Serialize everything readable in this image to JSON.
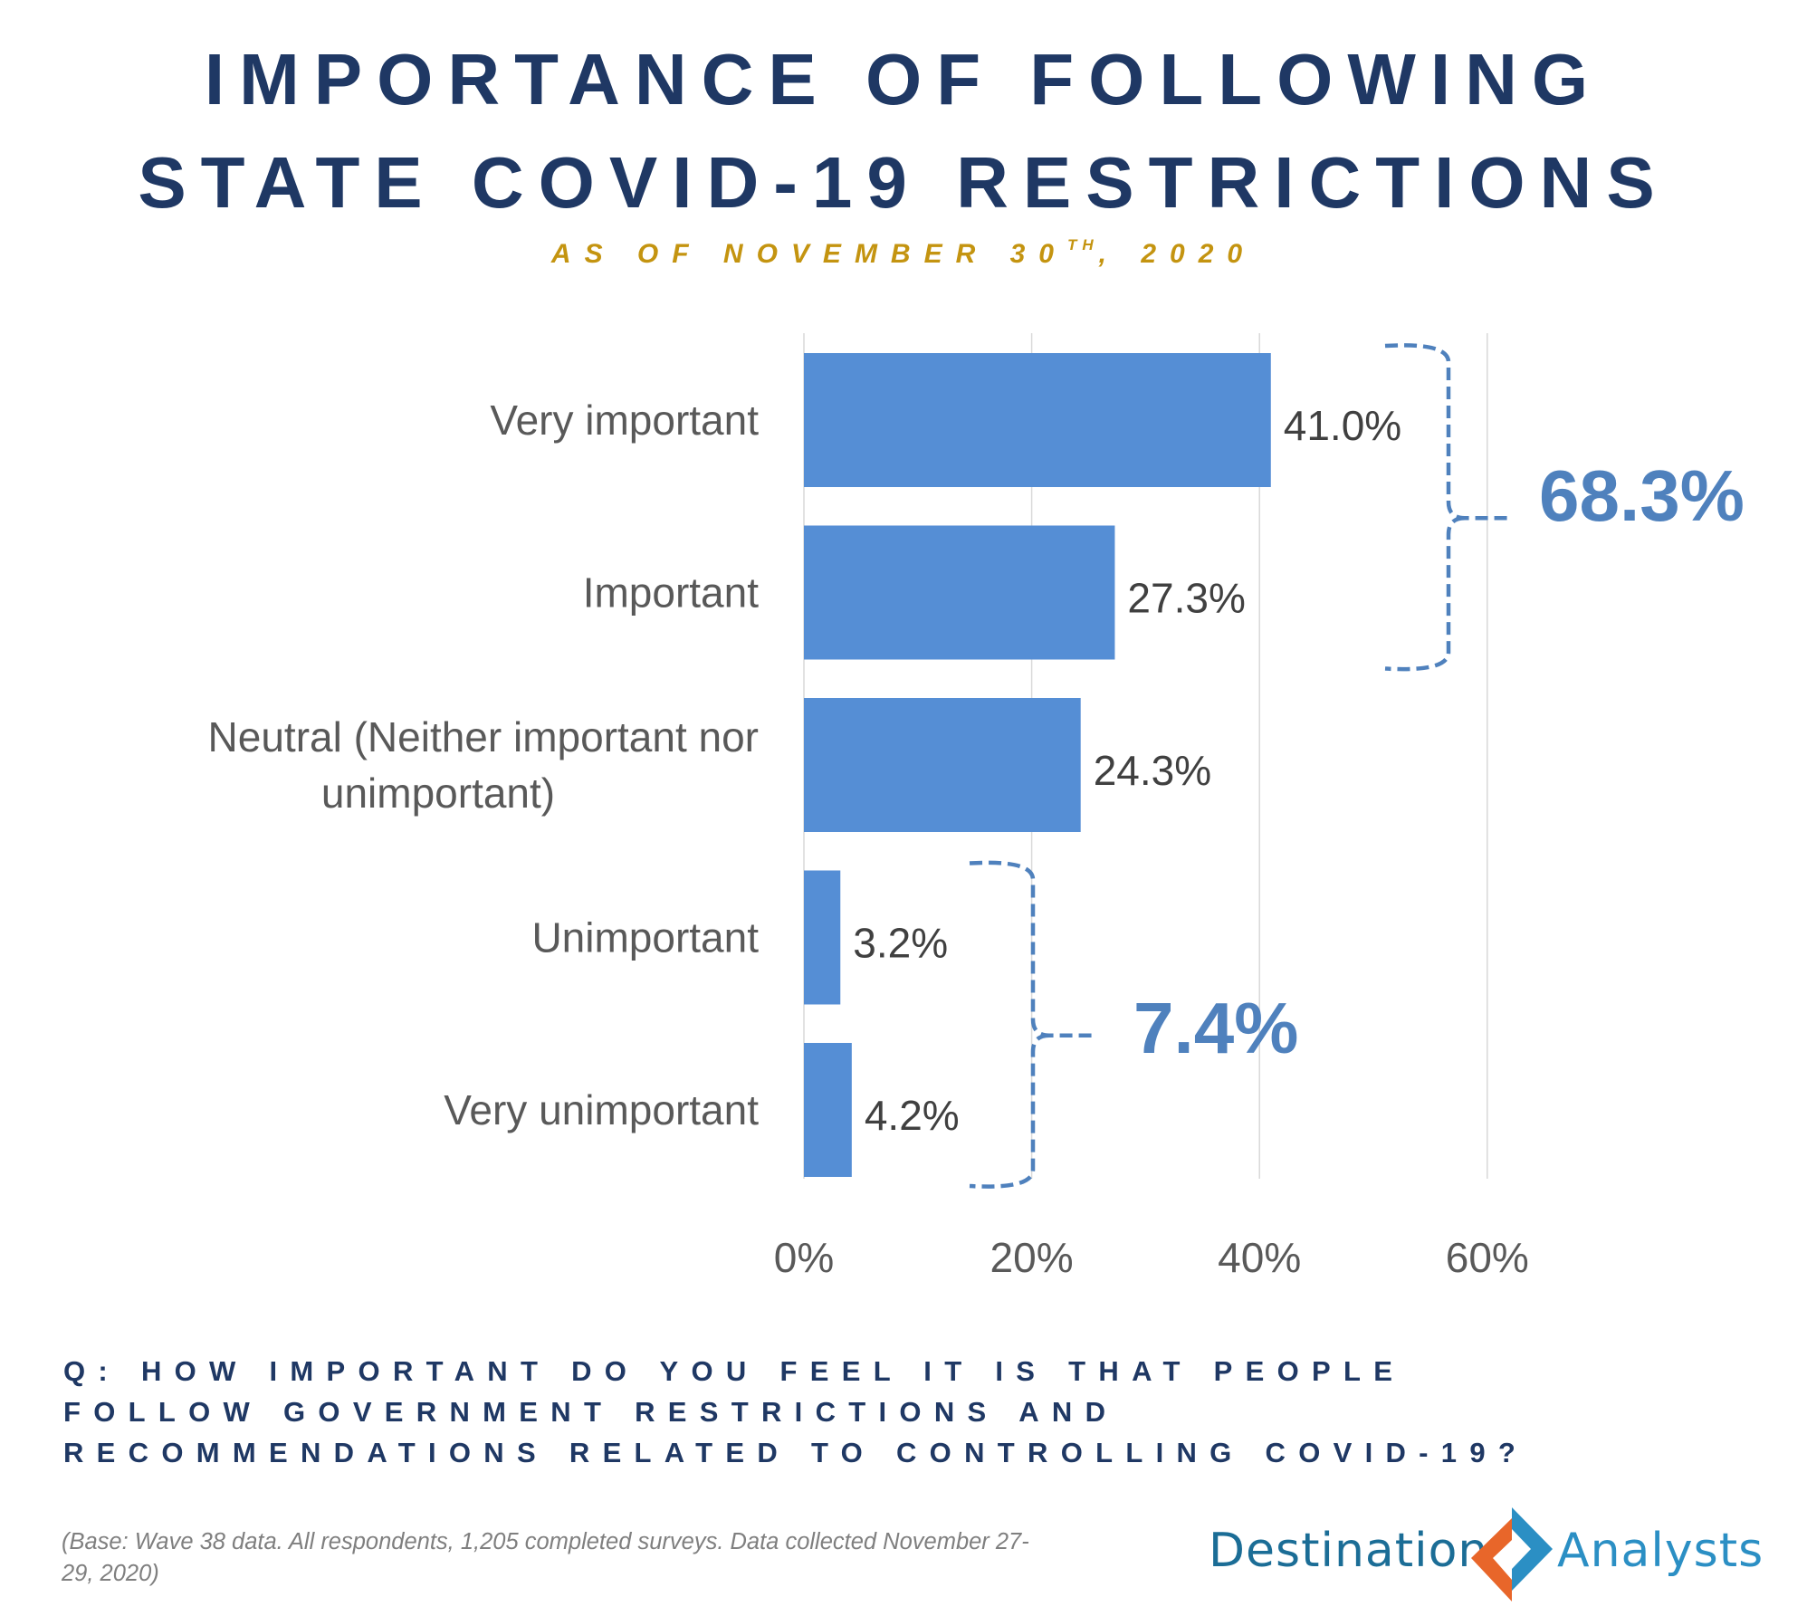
{
  "title": {
    "line1": "IMPORTANCE OF FOLLOWING",
    "line2": "STATE COVID-19 RESTRICTIONS"
  },
  "subtitle": {
    "text": "AS OF NOVEMBER 30",
    "ordinal": "TH",
    "suffix": ", 2020"
  },
  "chart_data": {
    "type": "bar",
    "orientation": "horizontal",
    "categories": [
      "Very important",
      "Important",
      "Neutral (Neither important nor unimportant)",
      "Unimportant",
      "Very unimportant"
    ],
    "category_label_lines": [
      [
        "Very important"
      ],
      [
        "Important"
      ],
      [
        "Neutral (Neither important nor",
        "unimportant)"
      ],
      [
        "Unimportant"
      ],
      [
        "Very unimportant"
      ]
    ],
    "values": [
      41.0,
      27.3,
      24.3,
      3.2,
      4.2
    ],
    "value_labels": [
      "41.0%",
      "27.3%",
      "24.3%",
      "3.2%",
      "4.2%"
    ],
    "xlim": [
      0,
      70
    ],
    "x_ticks": [
      0,
      20,
      40,
      60
    ],
    "x_tick_labels": [
      "0%",
      "20%",
      "40%",
      "60%"
    ],
    "grid": "vertical",
    "bar_color": "#558ed5",
    "groups": [
      {
        "label": "68.3%",
        "value": 68.3,
        "categories": [
          "Very important",
          "Important"
        ]
      },
      {
        "label": "7.4%",
        "value": 7.4,
        "categories": [
          "Unimportant",
          "Very unimportant"
        ]
      }
    ],
    "group_color": "#4f81bd"
  },
  "question": "Q: HOW IMPORTANT DO YOU FEEL IT IS THAT PEOPLE FOLLOW GOVERNMENT RESTRICTIONS AND RECOMMENDATIONS RELATED TO CONTROLLING COVID-19?",
  "base_note": "(Base: Wave 38 data. All respondents, 1,205 completed surveys. Data collected November 27-29, 2020)",
  "logo": {
    "word1": "Destination",
    "word2": "Analysts",
    "colors": {
      "blue": "#2b8fc4",
      "dark_blue": "#1b6d96",
      "orange": "#e8662a"
    }
  }
}
